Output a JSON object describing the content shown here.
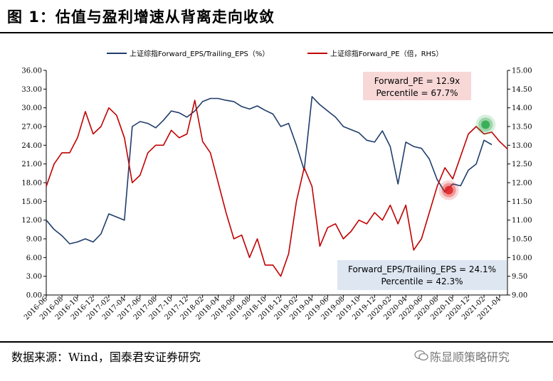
{
  "figure": {
    "title": "图 1：估值与盈利增速从背离走向收敛",
    "source": "数据来源：Wind，国泰君安证券研究",
    "watermark": "陈显顺策略研究"
  },
  "chart_data": {
    "type": "line",
    "legend": {
      "placement": "top",
      "entries": [
        "上证综指Forward_EPS/Trailing_EPS（%）",
        "上证综指Forward_PE（倍，RHS）"
      ]
    },
    "x_tick_labels": [
      "2016-06",
      "2016-08",
      "2016-10",
      "2016-12",
      "2017-02",
      "2017-04",
      "2017-06",
      "2017-08",
      "2017-10",
      "2017-12",
      "2018-02",
      "2018-04",
      "2018-06",
      "2018-08",
      "2018-10",
      "2018-12",
      "2019-02",
      "2019-04",
      "2019-06",
      "2019-08",
      "2019-10",
      "2019-12",
      "2020-02",
      "2020-04",
      "2020-06",
      "2020-08",
      "2020-10",
      "2020-12",
      "2021-02",
      "2021-04"
    ],
    "y_left": {
      "min": 0,
      "max": 36,
      "step": 3,
      "tick_labels": [
        "0.00",
        "3.00",
        "6.00",
        "9.00",
        "12.00",
        "15.00",
        "18.00",
        "21.00",
        "24.00",
        "27.00",
        "30.00",
        "33.00",
        "36.00"
      ]
    },
    "y_right": {
      "min": 9,
      "max": 15,
      "step": 0.5,
      "tick_labels": [
        "9.00",
        "9.50",
        "10.00",
        "10.50",
        "11.00",
        "11.50",
        "12.00",
        "12.50",
        "13.00",
        "13.50",
        "14.00",
        "14.50",
        "15.00"
      ]
    },
    "x_range": [
      0,
      59
    ],
    "series": [
      {
        "name": "上证综指Forward_EPS/Trailing_EPS（%）",
        "axis": "left",
        "color": "#1f3d6b",
        "points": [
          [
            0,
            12.0
          ],
          [
            1,
            10.5
          ],
          [
            2,
            9.5
          ],
          [
            3,
            8.2
          ],
          [
            4,
            8.5
          ],
          [
            5,
            9.0
          ],
          [
            6,
            8.5
          ],
          [
            7,
            9.8
          ],
          [
            8,
            13.0
          ],
          [
            9,
            12.5
          ],
          [
            10,
            12.0
          ],
          [
            11,
            27.0
          ],
          [
            12,
            27.8
          ],
          [
            13,
            27.5
          ],
          [
            14,
            26.8
          ],
          [
            15,
            28.0
          ],
          [
            16,
            29.5
          ],
          [
            17,
            29.2
          ],
          [
            18,
            28.5
          ],
          [
            19,
            29.5
          ],
          [
            20,
            31.0
          ],
          [
            21,
            31.5
          ],
          [
            22,
            31.5
          ],
          [
            23,
            31.2
          ],
          [
            24,
            31.0
          ],
          [
            25,
            30.2
          ],
          [
            26,
            29.8
          ],
          [
            27,
            30.3
          ],
          [
            28,
            29.6
          ],
          [
            29,
            29.0
          ],
          [
            30,
            27.0
          ],
          [
            31,
            27.5
          ],
          [
            32,
            24.0
          ],
          [
            33,
            20.0
          ],
          [
            34,
            31.8
          ],
          [
            35,
            30.5
          ],
          [
            36,
            29.5
          ],
          [
            37,
            28.5
          ],
          [
            38,
            27.0
          ],
          [
            39,
            26.5
          ],
          [
            40,
            26.0
          ],
          [
            41,
            24.8
          ],
          [
            42,
            24.5
          ],
          [
            43,
            26.3
          ],
          [
            44,
            23.8
          ],
          [
            45,
            17.8
          ],
          [
            46,
            24.5
          ],
          [
            47,
            23.8
          ],
          [
            48,
            23.5
          ],
          [
            49,
            21.8
          ],
          [
            50,
            18.5
          ],
          [
            51,
            16.5
          ],
          [
            52,
            17.8
          ],
          [
            53,
            17.5
          ],
          [
            54,
            20.0
          ],
          [
            55,
            21.0
          ],
          [
            56,
            24.8
          ],
          [
            57,
            24.1
          ]
        ]
      },
      {
        "name": "上证综指Forward_PE（倍，RHS）",
        "axis": "right",
        "color": "#c00000",
        "points": [
          [
            0,
            11.9
          ],
          [
            1,
            12.5
          ],
          [
            2,
            12.8
          ],
          [
            3,
            12.8
          ],
          [
            4,
            13.2
          ],
          [
            5,
            13.9
          ],
          [
            6,
            13.3
          ],
          [
            7,
            13.5
          ],
          [
            8,
            14.0
          ],
          [
            9,
            13.8
          ],
          [
            10,
            13.2
          ],
          [
            11,
            12.0
          ],
          [
            12,
            12.2
          ],
          [
            13,
            12.8
          ],
          [
            14,
            13.0
          ],
          [
            15,
            13.0
          ],
          [
            16,
            13.4
          ],
          [
            17,
            13.2
          ],
          [
            18,
            13.3
          ],
          [
            19,
            14.2
          ],
          [
            20,
            13.1
          ],
          [
            21,
            12.8
          ],
          [
            22,
            12.0
          ],
          [
            23,
            11.2
          ],
          [
            24,
            10.5
          ],
          [
            25,
            10.6
          ],
          [
            26,
            10.0
          ],
          [
            27,
            10.5
          ],
          [
            28,
            9.8
          ],
          [
            29,
            9.8
          ],
          [
            30,
            9.5
          ],
          [
            31,
            10.1
          ],
          [
            32,
            11.5
          ],
          [
            33,
            12.4
          ],
          [
            34,
            11.9
          ],
          [
            35,
            10.3
          ],
          [
            36,
            10.8
          ],
          [
            37,
            10.9
          ],
          [
            38,
            10.5
          ],
          [
            39,
            10.7
          ],
          [
            40,
            11.0
          ],
          [
            41,
            10.9
          ],
          [
            42,
            11.2
          ],
          [
            43,
            11.0
          ],
          [
            44,
            11.4
          ],
          [
            45,
            10.9
          ],
          [
            46,
            11.4
          ],
          [
            47,
            10.2
          ],
          [
            48,
            10.5
          ],
          [
            49,
            11.2
          ],
          [
            50,
            11.9
          ],
          [
            51,
            12.4
          ],
          [
            52,
            12.1
          ],
          [
            53,
            12.7
          ],
          [
            54,
            13.3
          ],
          [
            55,
            13.5
          ],
          [
            56,
            13.3
          ],
          [
            57,
            13.35
          ],
          [
            58,
            13.1
          ],
          [
            59,
            12.9
          ]
        ]
      }
    ],
    "annotations": {
      "pe": [
        "Forward_PE = 12.9x",
        "Percentile = 67.7%"
      ],
      "eps": [
        "Forward_EPS/Trailing_EPS = 24.1%",
        "Percentile = 42.3%"
      ]
    },
    "highlights": [
      {
        "series": "上证综指Forward_PE（倍，RHS）",
        "axis": "right",
        "x": 51.5,
        "y": 11.8,
        "color": "#e02020"
      },
      {
        "series": "上证综指Forward_PE（倍，RHS）",
        "axis": "right",
        "x": 56.2,
        "y": 13.55,
        "color": "#2aa84a"
      }
    ]
  }
}
